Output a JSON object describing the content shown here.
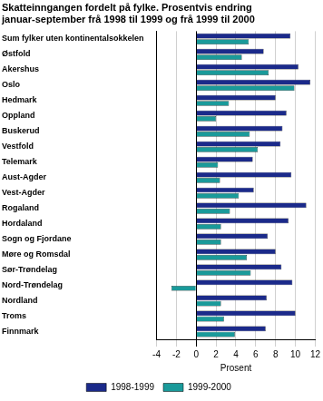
{
  "chart_data": {
    "type": "bar",
    "orientation": "horizontal",
    "title": [
      "Skatteinngangen fordelt på fylke. Prosentvis endring",
      "januar-september frå 1998 til 1999 og frå 1999 til 2000"
    ],
    "x_label": "Prosent",
    "categories": [
      "Sum fylker uten kontinentalsokkelen",
      "Østfold",
      "Akershus",
      "Oslo",
      "Hedmark",
      "Oppland",
      "Buskerud",
      "Vestfold",
      "Telemark",
      "Aust-Agder",
      "Vest-Agder",
      "Rogaland",
      "Hordaland",
      "Sogn og Fjordane",
      "Møre og Romsdal",
      "Sør-Trøndelag",
      "Nord-Trøndelag",
      "Nordland",
      "Troms",
      "Finnmark"
    ],
    "series": [
      {
        "name": "1998-1999",
        "color": "#1b2a8a",
        "values": [
          9.5,
          6.8,
          10.3,
          11.5,
          8.0,
          9.1,
          8.7,
          8.5,
          5.7,
          9.6,
          5.8,
          11.1,
          9.3,
          7.2,
          8.0,
          8.6,
          9.7,
          7.1,
          10.0,
          7.0
        ]
      },
      {
        "name": "1999-2000",
        "color": "#1a9a9a",
        "values": [
          5.3,
          4.6,
          7.3,
          9.9,
          3.3,
          2.0,
          5.4,
          6.2,
          2.2,
          2.4,
          4.3,
          3.4,
          2.5,
          2.5,
          5.1,
          5.5,
          -2.5,
          2.5,
          2.8,
          3.9
        ]
      }
    ],
    "xlim": [
      -4,
      12
    ],
    "xticks": [
      -4,
      -2,
      0,
      2,
      4,
      6,
      8,
      10,
      12
    ],
    "grid": true,
    "legend": "bottom"
  }
}
